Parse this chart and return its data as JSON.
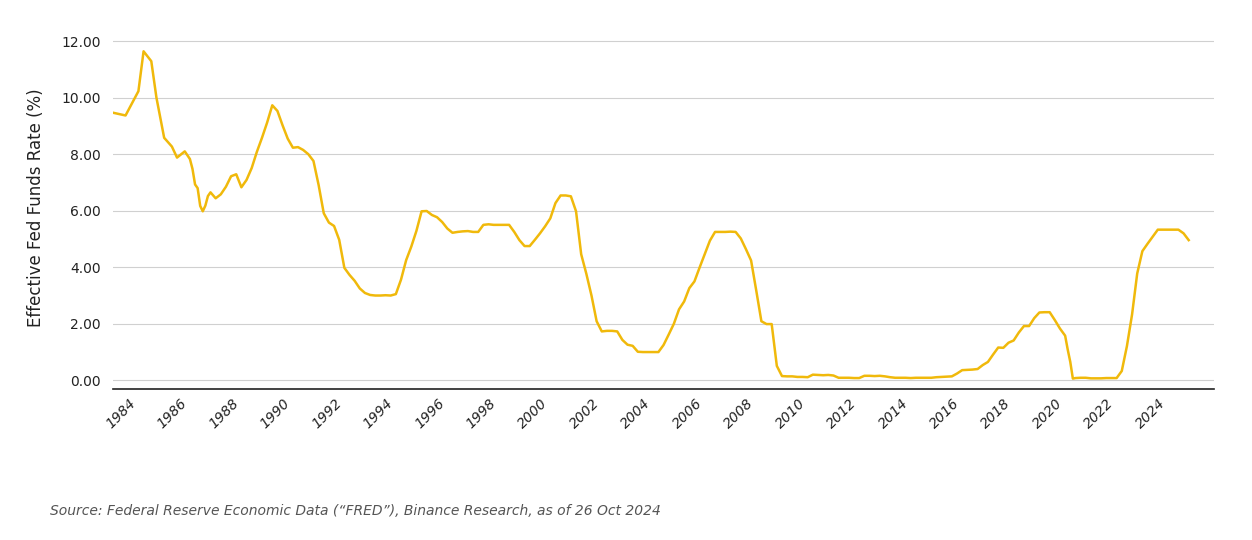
{
  "title": "",
  "ylabel": "Effective Fed Funds Rate (%)",
  "source_text": "Source: Federal Reserve Economic Data (“FRED”), Binance Research, as of 26 Oct 2024",
  "line_color": "#F0B90B",
  "background_color": "#FFFFFF",
  "ylim": [
    -0.3,
    12.5
  ],
  "yticks": [
    0.0,
    2.0,
    4.0,
    6.0,
    8.0,
    10.0,
    12.0
  ],
  "xtick_labels": [
    "1984",
    "1986",
    "1988",
    "1990",
    "1992",
    "1994",
    "1996",
    "1998",
    "2000",
    "2002",
    "2004",
    "2006",
    "2008",
    "2010",
    "2012",
    "2014",
    "2016",
    "2018",
    "2020",
    "2022",
    "2024"
  ],
  "xlim": [
    1983.0,
    2025.8
  ],
  "data": [
    [
      1983.0,
      9.47
    ],
    [
      1983.5,
      9.37
    ],
    [
      1984.0,
      10.23
    ],
    [
      1984.2,
      11.64
    ],
    [
      1984.5,
      11.29
    ],
    [
      1984.7,
      10.0
    ],
    [
      1985.0,
      8.58
    ],
    [
      1985.3,
      8.27
    ],
    [
      1985.5,
      7.88
    ],
    [
      1985.8,
      8.1
    ],
    [
      1986.0,
      7.83
    ],
    [
      1986.1,
      7.48
    ],
    [
      1986.2,
      6.93
    ],
    [
      1986.3,
      6.8
    ],
    [
      1986.4,
      6.17
    ],
    [
      1986.5,
      5.98
    ],
    [
      1986.6,
      6.18
    ],
    [
      1986.7,
      6.52
    ],
    [
      1986.8,
      6.65
    ],
    [
      1987.0,
      6.44
    ],
    [
      1987.2,
      6.58
    ],
    [
      1987.4,
      6.85
    ],
    [
      1987.6,
      7.22
    ],
    [
      1987.8,
      7.29
    ],
    [
      1988.0,
      6.83
    ],
    [
      1988.2,
      7.09
    ],
    [
      1988.4,
      7.51
    ],
    [
      1988.6,
      8.08
    ],
    [
      1988.8,
      8.58
    ],
    [
      1989.0,
      9.12
    ],
    [
      1989.2,
      9.73
    ],
    [
      1989.4,
      9.53
    ],
    [
      1989.6,
      9.02
    ],
    [
      1989.8,
      8.55
    ],
    [
      1990.0,
      8.23
    ],
    [
      1990.2,
      8.25
    ],
    [
      1990.4,
      8.15
    ],
    [
      1990.6,
      8.0
    ],
    [
      1990.8,
      7.76
    ],
    [
      1991.0,
      6.91
    ],
    [
      1991.2,
      5.91
    ],
    [
      1991.4,
      5.58
    ],
    [
      1991.6,
      5.46
    ],
    [
      1991.8,
      4.97
    ],
    [
      1992.0,
      3.98
    ],
    [
      1992.2,
      3.73
    ],
    [
      1992.4,
      3.52
    ],
    [
      1992.6,
      3.25
    ],
    [
      1992.8,
      3.09
    ],
    [
      1993.0,
      3.02
    ],
    [
      1993.2,
      3.0
    ],
    [
      1993.4,
      3.0
    ],
    [
      1993.6,
      3.01
    ],
    [
      1993.8,
      3.0
    ],
    [
      1994.0,
      3.05
    ],
    [
      1994.2,
      3.56
    ],
    [
      1994.4,
      4.25
    ],
    [
      1994.6,
      4.73
    ],
    [
      1994.8,
      5.29
    ],
    [
      1995.0,
      5.98
    ],
    [
      1995.2,
      5.99
    ],
    [
      1995.4,
      5.85
    ],
    [
      1995.6,
      5.77
    ],
    [
      1995.8,
      5.6
    ],
    [
      1996.0,
      5.37
    ],
    [
      1996.2,
      5.22
    ],
    [
      1996.4,
      5.25
    ],
    [
      1996.6,
      5.27
    ],
    [
      1996.8,
      5.28
    ],
    [
      1997.0,
      5.25
    ],
    [
      1997.2,
      5.25
    ],
    [
      1997.4,
      5.5
    ],
    [
      1997.6,
      5.52
    ],
    [
      1997.8,
      5.5
    ],
    [
      1998.0,
      5.5
    ],
    [
      1998.2,
      5.5
    ],
    [
      1998.4,
      5.5
    ],
    [
      1998.6,
      5.25
    ],
    [
      1998.8,
      4.96
    ],
    [
      1999.0,
      4.75
    ],
    [
      1999.2,
      4.75
    ],
    [
      1999.4,
      4.97
    ],
    [
      1999.6,
      5.2
    ],
    [
      1999.8,
      5.45
    ],
    [
      2000.0,
      5.73
    ],
    [
      2000.2,
      6.27
    ],
    [
      2000.4,
      6.54
    ],
    [
      2000.6,
      6.54
    ],
    [
      2000.8,
      6.51
    ],
    [
      2001.0,
      5.98
    ],
    [
      2001.2,
      4.46
    ],
    [
      2001.4,
      3.77
    ],
    [
      2001.6,
      3.0
    ],
    [
      2001.8,
      2.09
    ],
    [
      2002.0,
      1.73
    ],
    [
      2002.2,
      1.75
    ],
    [
      2002.4,
      1.75
    ],
    [
      2002.6,
      1.73
    ],
    [
      2002.8,
      1.43
    ],
    [
      2003.0,
      1.26
    ],
    [
      2003.2,
      1.22
    ],
    [
      2003.4,
      1.01
    ],
    [
      2003.6,
      1.0
    ],
    [
      2003.8,
      1.0
    ],
    [
      2004.0,
      1.0
    ],
    [
      2004.2,
      1.0
    ],
    [
      2004.4,
      1.25
    ],
    [
      2004.6,
      1.62
    ],
    [
      2004.8,
      2.0
    ],
    [
      2005.0,
      2.51
    ],
    [
      2005.2,
      2.79
    ],
    [
      2005.4,
      3.26
    ],
    [
      2005.6,
      3.5
    ],
    [
      2005.8,
      3.99
    ],
    [
      2006.0,
      4.46
    ],
    [
      2006.2,
      4.94
    ],
    [
      2006.4,
      5.25
    ],
    [
      2006.6,
      5.25
    ],
    [
      2006.8,
      5.25
    ],
    [
      2007.0,
      5.26
    ],
    [
      2007.2,
      5.25
    ],
    [
      2007.4,
      5.02
    ],
    [
      2007.6,
      4.64
    ],
    [
      2007.8,
      4.24
    ],
    [
      2008.0,
      3.18
    ],
    [
      2008.2,
      2.09
    ],
    [
      2008.4,
      1.99
    ],
    [
      2008.6,
      1.99
    ],
    [
      2008.8,
      0.51
    ],
    [
      2009.0,
      0.15
    ],
    [
      2009.2,
      0.14
    ],
    [
      2009.4,
      0.14
    ],
    [
      2009.6,
      0.12
    ],
    [
      2009.8,
      0.12
    ],
    [
      2010.0,
      0.11
    ],
    [
      2010.2,
      0.2
    ],
    [
      2010.4,
      0.19
    ],
    [
      2010.6,
      0.18
    ],
    [
      2010.8,
      0.19
    ],
    [
      2011.0,
      0.17
    ],
    [
      2011.2,
      0.09
    ],
    [
      2011.4,
      0.09
    ],
    [
      2011.6,
      0.09
    ],
    [
      2011.8,
      0.08
    ],
    [
      2012.0,
      0.08
    ],
    [
      2012.2,
      0.16
    ],
    [
      2012.4,
      0.16
    ],
    [
      2012.6,
      0.15
    ],
    [
      2012.8,
      0.16
    ],
    [
      2013.0,
      0.14
    ],
    [
      2013.2,
      0.11
    ],
    [
      2013.4,
      0.09
    ],
    [
      2013.6,
      0.09
    ],
    [
      2013.8,
      0.09
    ],
    [
      2014.0,
      0.08
    ],
    [
      2014.2,
      0.09
    ],
    [
      2014.4,
      0.09
    ],
    [
      2014.6,
      0.09
    ],
    [
      2014.8,
      0.09
    ],
    [
      2015.0,
      0.11
    ],
    [
      2015.2,
      0.12
    ],
    [
      2015.4,
      0.13
    ],
    [
      2015.6,
      0.14
    ],
    [
      2015.8,
      0.24
    ],
    [
      2016.0,
      0.36
    ],
    [
      2016.2,
      0.37
    ],
    [
      2016.4,
      0.38
    ],
    [
      2016.6,
      0.4
    ],
    [
      2016.8,
      0.54
    ],
    [
      2017.0,
      0.65
    ],
    [
      2017.2,
      0.91
    ],
    [
      2017.4,
      1.16
    ],
    [
      2017.6,
      1.15
    ],
    [
      2017.8,
      1.33
    ],
    [
      2018.0,
      1.41
    ],
    [
      2018.2,
      1.69
    ],
    [
      2018.4,
      1.92
    ],
    [
      2018.6,
      1.92
    ],
    [
      2018.8,
      2.2
    ],
    [
      2019.0,
      2.4
    ],
    [
      2019.2,
      2.41
    ],
    [
      2019.4,
      2.41
    ],
    [
      2019.6,
      2.13
    ],
    [
      2019.8,
      1.83
    ],
    [
      2020.0,
      1.58
    ],
    [
      2020.1,
      1.09
    ],
    [
      2020.2,
      0.65
    ],
    [
      2020.3,
      0.06
    ],
    [
      2020.4,
      0.08
    ],
    [
      2020.6,
      0.09
    ],
    [
      2020.8,
      0.09
    ],
    [
      2021.0,
      0.07
    ],
    [
      2021.2,
      0.07
    ],
    [
      2021.4,
      0.07
    ],
    [
      2021.6,
      0.08
    ],
    [
      2021.8,
      0.08
    ],
    [
      2022.0,
      0.08
    ],
    [
      2022.2,
      0.33
    ],
    [
      2022.4,
      1.21
    ],
    [
      2022.6,
      2.33
    ],
    [
      2022.8,
      3.78
    ],
    [
      2023.0,
      4.57
    ],
    [
      2023.2,
      4.83
    ],
    [
      2023.4,
      5.08
    ],
    [
      2023.6,
      5.33
    ],
    [
      2023.8,
      5.33
    ],
    [
      2024.0,
      5.33
    ],
    [
      2024.2,
      5.33
    ],
    [
      2024.4,
      5.33
    ],
    [
      2024.6,
      5.2
    ],
    [
      2024.8,
      4.96
    ]
  ],
  "ylabel_fontsize": 12,
  "tick_fontsize": 10,
  "source_fontsize": 10,
  "line_width": 1.8
}
